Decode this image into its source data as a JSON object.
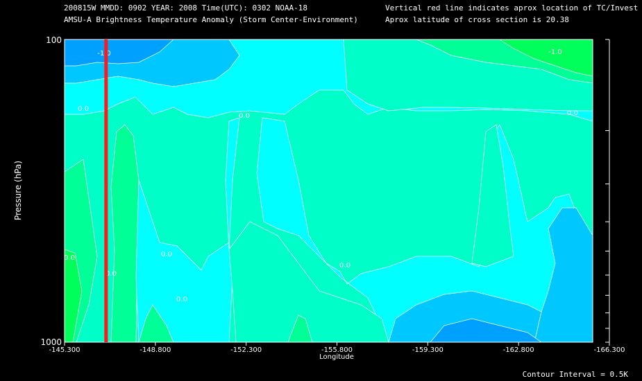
{
  "header": {
    "line1_left": "200815W  MMDD: 0902 YEAR: 2008 Time(UTC): 0302 NOAA-18",
    "line2_left": "AMSU-A Brightness Temperature Anomaly (Storm Center-Environment)",
    "line1_right": "Vertical red line indicates aprox location of TC/Invest",
    "line2_right": "Aprox latitude of cross section is 20.38"
  },
  "footer": {
    "contour_interval": "Contour Interval = 0.5K"
  },
  "chart_data": {
    "type": "heatmap",
    "title": "AMSU-A Brightness Temperature Anomaly (Storm Center-Environment)",
    "xlabel": "Longitude",
    "ylabel": "Pressure (hPa)",
    "x_ticks": [
      "-145.300",
      "-148.800",
      "-152.300",
      "-155.800",
      "-159.300",
      "-162.800",
      "-166.300"
    ],
    "x_range": [
      -145.3,
      -166.3
    ],
    "y_ticks": [
      "100",
      "1000"
    ],
    "y_range": [
      100,
      1000
    ],
    "y_scale": "log",
    "tc_longitude": -146.9,
    "contour_labels": [
      "-1.0",
      "-1.0",
      "0.0",
      "0.0",
      "0.0",
      "0.0",
      "0.0",
      "0.0",
      "0.0",
      "0.0"
    ],
    "contour_interval": 0.5,
    "colors": {
      "minus_1_5": "#00a0ff",
      "minus_1_0": "#00c8ff",
      "minus_0_5": "#00ffff",
      "zero": "#00ffc8",
      "plus_0_5": "#00ff96",
      "plus_1_0": "#00ff5a",
      "tc_line": "#ff1a1a",
      "contour": "#ffffff"
    }
  }
}
